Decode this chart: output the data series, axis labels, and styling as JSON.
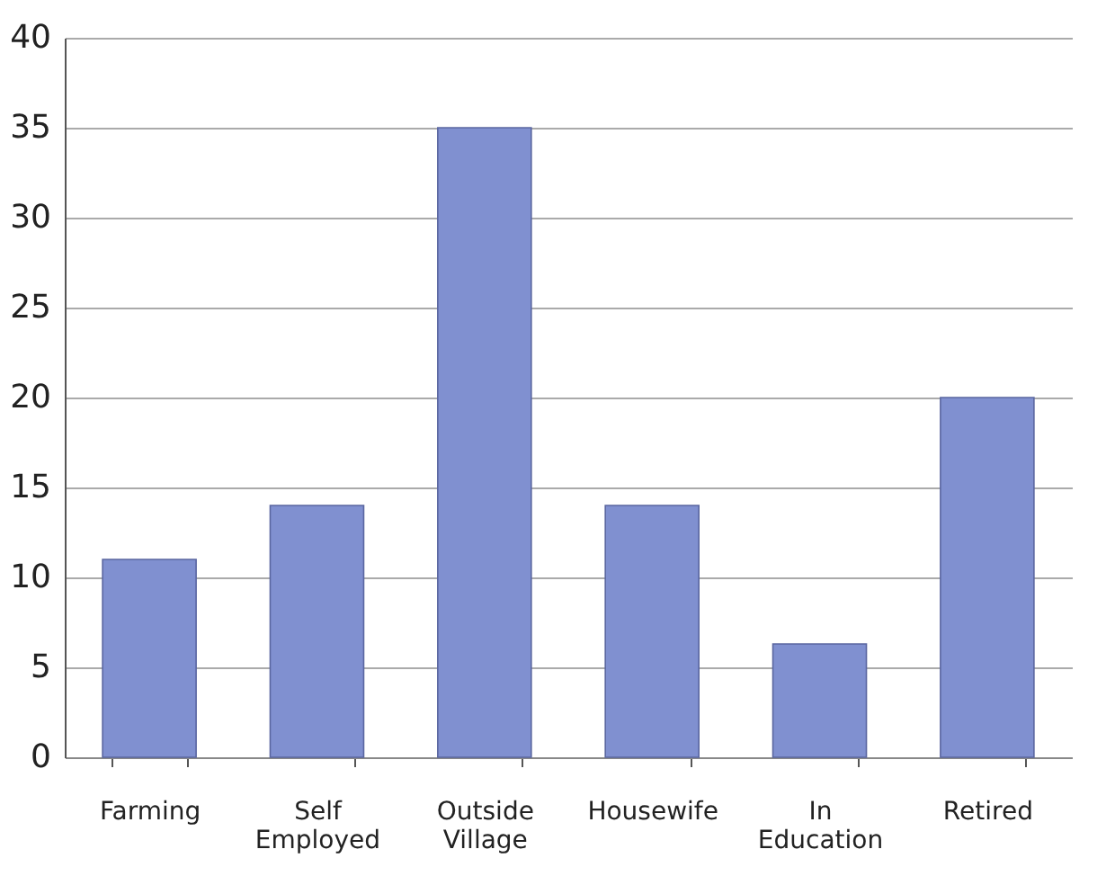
{
  "chart_data": {
    "type": "bar",
    "categories": [
      "Farming",
      "Self Employed",
      "Outside Village",
      "Housewife",
      "In Education",
      "Retired"
    ],
    "values": [
      11,
      14,
      35,
      14,
      6.3,
      20
    ],
    "color": "#8090d0",
    "ylim": [
      0,
      40
    ],
    "yticks": [
      0,
      5,
      10,
      15,
      20,
      25,
      30,
      35,
      40
    ],
    "grid": "y"
  }
}
